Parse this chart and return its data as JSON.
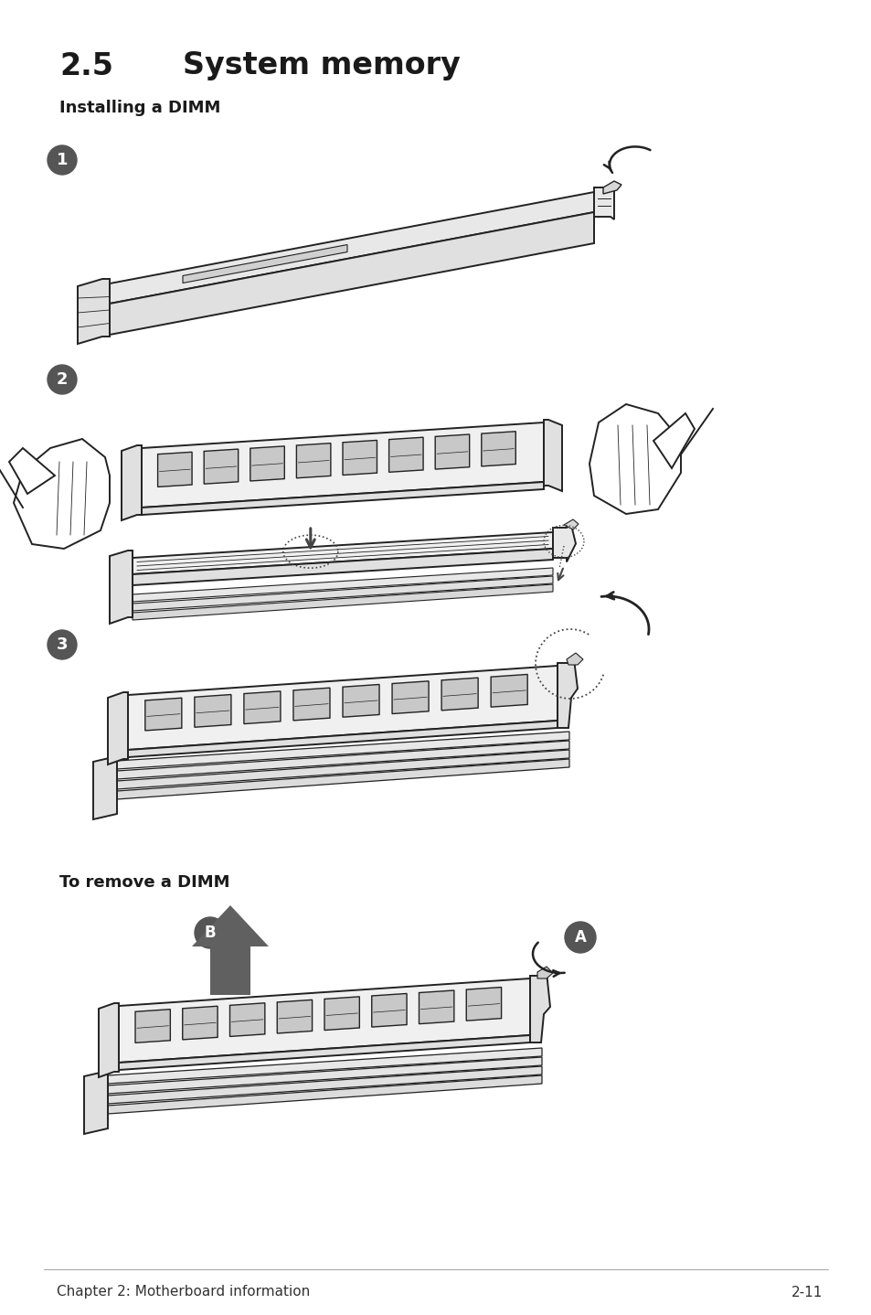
{
  "title_num": "2.5",
  "title_text": "System memory",
  "subtitle": "Installing a DIMM",
  "footer_left": "Chapter 2: Motherboard information",
  "footer_right": "2-11",
  "bg_color": "#ffffff",
  "text_color": "#1a1a1a",
  "remove_label": "To remove a DIMM",
  "step_circle_color": "#555555",
  "step_circle_text_color": "#ffffff",
  "line_color": "#222222",
  "fill_light": "#f0f0f0",
  "fill_mid": "#e0e0e0",
  "fill_dark": "#c8c8c8"
}
